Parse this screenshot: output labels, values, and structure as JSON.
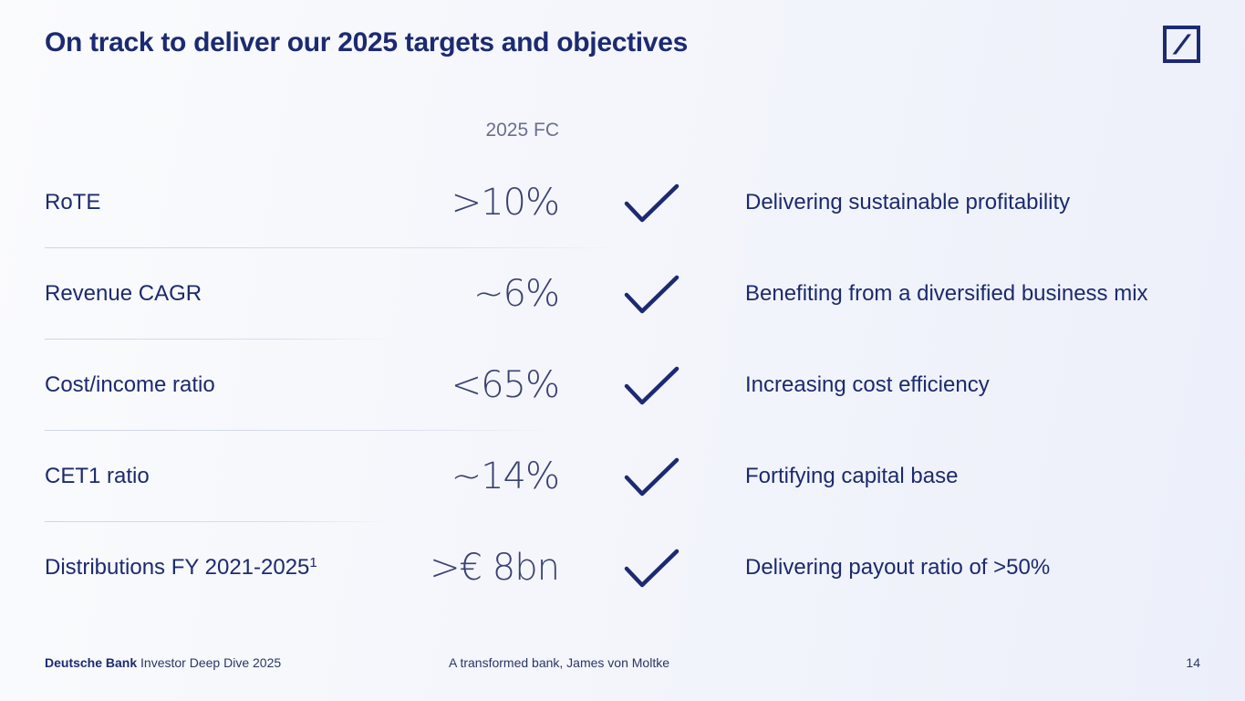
{
  "title": "On track to deliver our 2025 targets and objectives",
  "column_header": "2025 FC",
  "rows": [
    {
      "label": "RoTE",
      "value": ">10%",
      "description": "Delivering sustainable profitability"
    },
    {
      "label": "Revenue CAGR",
      "value": "~6%",
      "description": "Benefiting from a diversified business mix"
    },
    {
      "label": "Cost/income ratio",
      "value": "<65%",
      "description": "Increasing cost efficiency"
    },
    {
      "label": "CET1 ratio",
      "value": "~14%",
      "description": "Fortifying capital base"
    },
    {
      "label": "Distributions FY 2021-2025",
      "footnote": "1",
      "value": ">€ 8bn",
      "description": "Delivering payout ratio of >50%"
    }
  ],
  "footer": {
    "brand": "Deutsche Bank",
    "event": "Investor Deep Dive 2025",
    "presentation": "A transformed bank, James von Moltke",
    "page_number": "14"
  },
  "icons": {
    "logo": "deutsche-bank-slash-square-logo",
    "check": "check-icon"
  },
  "colors": {
    "primary_navy": "#1c2a72",
    "text": "#1c2a6e",
    "muted": "#6a708c",
    "value": "#3a4170"
  }
}
